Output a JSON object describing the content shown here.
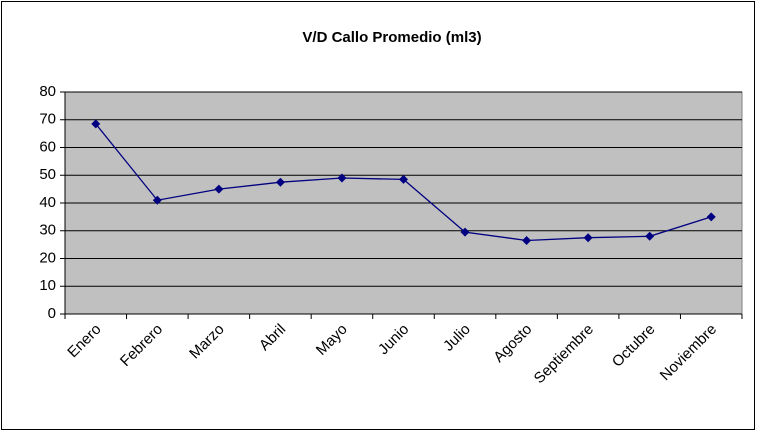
{
  "chart_data": {
    "type": "line",
    "title": "V/D Callo Promedio (ml3)",
    "categories": [
      "Enero",
      "Febrero",
      "Marzo",
      "Abril",
      "Mayo",
      "Junio",
      "Julio",
      "Agosto",
      "Septiembre",
      "Octubre",
      "Noviembre"
    ],
    "series": [
      {
        "name": "V/D Callo Promedio (ml3)",
        "color": "#000080",
        "values": [
          68.5,
          41,
          45,
          47.5,
          49,
          48.5,
          29.5,
          26.5,
          27.5,
          28,
          35
        ]
      }
    ],
    "ylim": [
      0,
      80
    ],
    "yticks": [
      0,
      10,
      20,
      30,
      40,
      50,
      60,
      70,
      80
    ],
    "grid": true
  }
}
